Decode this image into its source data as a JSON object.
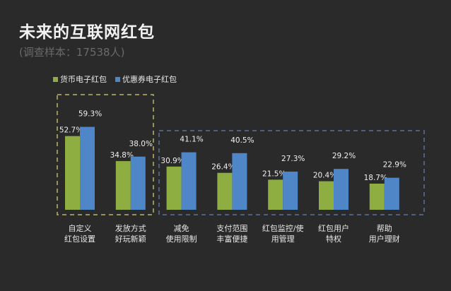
{
  "title": "未来的互联网红包",
  "subtitle": "(调查样本：17538人)",
  "chart_data": {
    "type": "bar",
    "categories": [
      [
        "自定义",
        "红包设置"
      ],
      [
        "发放方式",
        "好玩新颖"
      ],
      [
        "减免",
        "使用限制"
      ],
      [
        "支付范围",
        "丰富便捷"
      ],
      [
        "红包监控/使",
        "用管理"
      ],
      [
        "红包用户",
        "特权"
      ],
      [
        "帮助",
        "用户理财"
      ]
    ],
    "series": [
      {
        "name": "货币电子红包",
        "color": "#8fae42",
        "values": [
          52.7,
          34.8,
          30.9,
          26.4,
          21.5,
          20.4,
          18.7
        ],
        "labels": [
          "52.7%",
          "34.8%",
          "30.9%",
          "26.4%",
          "21.5%",
          "20.4%",
          "18.7%"
        ]
      },
      {
        "name": "优惠券电子红包",
        "color": "#4f86c8",
        "values": [
          59.3,
          38.0,
          41.1,
          40.5,
          27.3,
          29.2,
          22.9
        ],
        "labels": [
          "59.3%",
          "38.0%",
          "41.1%",
          "40.5%",
          "27.3%",
          "29.2%",
          "22.9%"
        ]
      }
    ],
    "unit": "%",
    "ylim": [
      0,
      60
    ],
    "grid": false,
    "legend": "top-left",
    "highlight_groups": [
      {
        "categories": [
          0,
          1
        ],
        "color": "#b9b86a",
        "style": "dashed"
      },
      {
        "categories": [
          2,
          3,
          4,
          5,
          6
        ],
        "color": "#5c6f9c",
        "style": "dashed"
      }
    ]
  }
}
